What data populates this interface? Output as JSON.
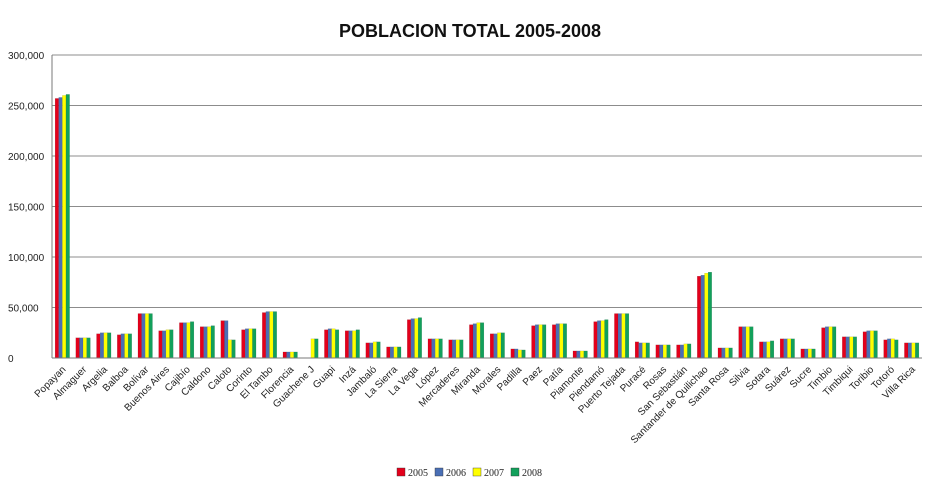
{
  "chart_data": {
    "type": "bar",
    "title": "POBLACION TOTAL 2005-2008",
    "xlabel": "",
    "ylabel": "",
    "ylim": [
      0,
      300000
    ],
    "yticks": [
      0,
      50000,
      100000,
      150000,
      200000,
      250000,
      300000
    ],
    "ytick_labels": [
      "0",
      "50,000",
      "100,000",
      "150,000",
      "200,000",
      "250,000",
      "300,000"
    ],
    "grid": true,
    "legend_position": "bottom",
    "categories": [
      "Popayan",
      "Almaguer",
      "Argelia",
      "Balboa",
      "Bolívar",
      "Buenos Aires",
      "Cajibío",
      "Caldono",
      "Caloto",
      "Corinto",
      "El Tambo",
      "Florencia",
      "Guachene J",
      "Guapi",
      "Inzá",
      "Jambaló",
      "La Sierra",
      "La Vega",
      "López",
      "Mercaderes",
      "Miranda",
      "Morales",
      "Padilla",
      "Paez",
      "Patía",
      "Piamonte",
      "Piendamó",
      "Puerto Tejada",
      "Puracé",
      "Rosas",
      "San Sebastián",
      "Santander de Quilichao",
      "Santa Rosa",
      "Silvia",
      "Sotara",
      "Suárez",
      "Sucre",
      "Timbio",
      "Timbiqui",
      "Toribio",
      "Totoró",
      "Villa Rica"
    ],
    "series": [
      {
        "name": "2005",
        "color": "#e3001b",
        "values": [
          257000,
          20000,
          24000,
          23000,
          44000,
          27000,
          35000,
          31000,
          37000,
          28000,
          45000,
          6000,
          0,
          28000,
          27000,
          15000,
          11000,
          38000,
          19000,
          18000,
          33000,
          24000,
          9000,
          32000,
          33000,
          7000,
          36000,
          44000,
          16000,
          13000,
          13000,
          81000,
          10000,
          31000,
          16000,
          19000,
          9000,
          30000,
          21000,
          26000,
          18000,
          15000
        ]
      },
      {
        "name": "2006",
        "color": "#4a6fb5",
        "values": [
          258000,
          20000,
          25000,
          24000,
          44000,
          27000,
          35000,
          31000,
          37000,
          29000,
          46000,
          6000,
          0,
          29000,
          27000,
          15000,
          11000,
          39000,
          19000,
          18000,
          34000,
          24000,
          9000,
          33000,
          34000,
          7000,
          37000,
          44000,
          15000,
          13000,
          13000,
          82000,
          10000,
          31000,
          16000,
          19000,
          9000,
          31000,
          21000,
          27000,
          19000,
          15000
        ]
      },
      {
        "name": "2007",
        "color": "#ffff00",
        "values": [
          260000,
          20000,
          25000,
          24000,
          44000,
          28000,
          35000,
          31000,
          18000,
          29000,
          46000,
          6000,
          19000,
          29000,
          27000,
          16000,
          11000,
          39000,
          19000,
          18000,
          35000,
          25000,
          8000,
          33000,
          34000,
          7000,
          37000,
          44000,
          15000,
          13000,
          14000,
          84000,
          10000,
          31000,
          16000,
          19000,
          9000,
          31000,
          21000,
          27000,
          19000,
          15000
        ]
      },
      {
        "name": "2008",
        "color": "#12a05b",
        "values": [
          261000,
          20000,
          25000,
          24000,
          44000,
          28000,
          36000,
          32000,
          18000,
          29000,
          46000,
          6000,
          19000,
          28000,
          28000,
          16000,
          11000,
          40000,
          19000,
          18000,
          35000,
          25000,
          8000,
          33000,
          34000,
          7000,
          38000,
          44000,
          15000,
          13000,
          14000,
          85000,
          10000,
          31000,
          17000,
          19000,
          9000,
          31000,
          21000,
          27000,
          18000,
          15000
        ]
      }
    ]
  }
}
